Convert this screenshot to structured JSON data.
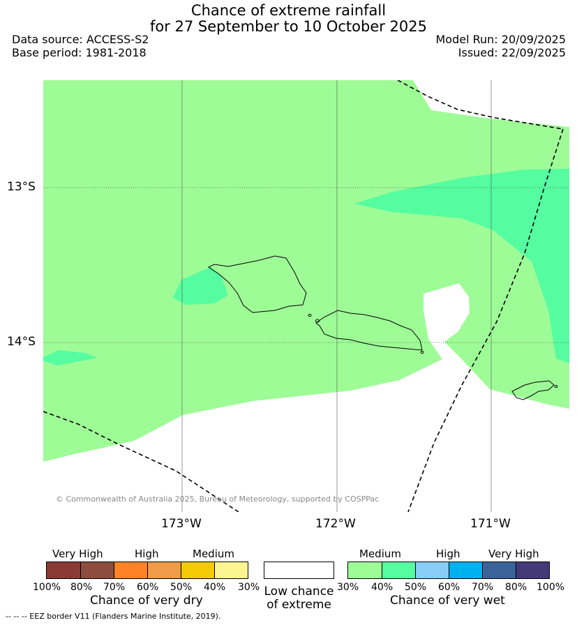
{
  "title_line1": "Chance of extreme rainfall",
  "title_line2": "for 27 September to 10 October 2025",
  "data_source": "Data source: ACCESS-S2",
  "base_period": "Base period: 1981-2018",
  "model_run": "Model Run: 20/09/2025",
  "issued": "Issued: 22/09/2025",
  "lat_labels": [
    "13°S",
    "14°S"
  ],
  "lon_labels": [
    "173°W",
    "172°W",
    "171°W"
  ],
  "copyright": "© Commonwealth of Australia 2025, Bureau of Meteorology, supported by COSPPac",
  "colors": {
    "medium_wet": "#9efc96",
    "high_wet_40_50": "#55fca0",
    "ocean_low": "#ffffff",
    "boundary": "#000000"
  },
  "legend": {
    "dry": {
      "headers": [
        "Very High",
        "High",
        "Medium"
      ],
      "colors": [
        "#8b3b35",
        "#8c4c3e",
        "#ff8227",
        "#f09b48",
        "#f4ca04",
        "#fdf590"
      ],
      "ticks": [
        "100%",
        "80%",
        "70%",
        "60%",
        "50%",
        "40%",
        "30%"
      ],
      "caption": "Chance of very dry"
    },
    "low": {
      "caption_line1": "Low chance",
      "caption_line2": "of extreme",
      "color": "#ffffff"
    },
    "wet": {
      "headers": [
        "Medium",
        "High",
        "Very High"
      ],
      "colors": [
        "#9efc96",
        "#55fca0",
        "#88cdf8",
        "#00b1f0",
        "#3a639a",
        "#433a77"
      ],
      "ticks": [
        "30%",
        "40%",
        "50%",
        "60%",
        "70%",
        "80%",
        "100%"
      ],
      "caption": "Chance of very wet"
    }
  },
  "footer": "-- -- -- EEZ border V11 (Flanders Marine Institute, 2019)."
}
